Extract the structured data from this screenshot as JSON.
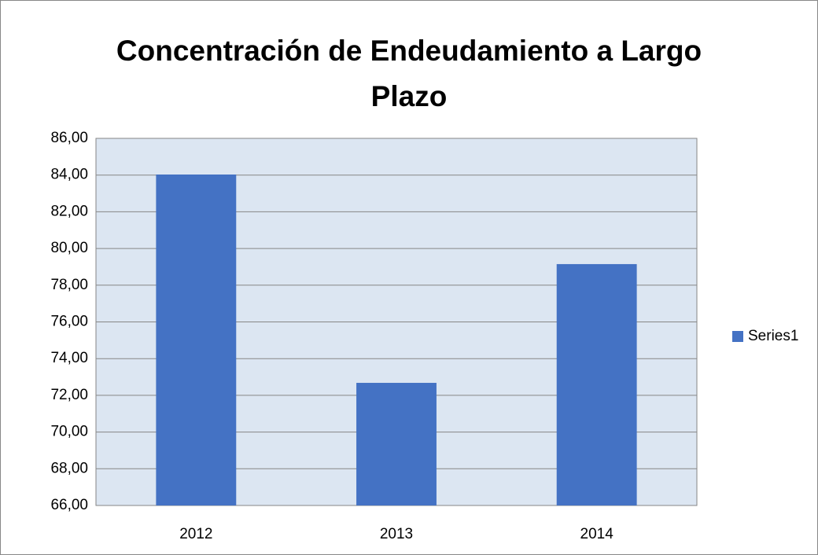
{
  "chart_data": {
    "type": "bar",
    "title": "Concentración de Endeudamiento a Largo Plazo",
    "categories": [
      "2012",
      "2013",
      "2014"
    ],
    "series": [
      {
        "name": "Series1",
        "color": "#4472c4",
        "values": [
          84.03,
          72.68,
          79.15
        ]
      }
    ],
    "ylim": [
      66,
      86
    ],
    "yticks": [
      {
        "value": 66,
        "label": "66,00"
      },
      {
        "value": 68,
        "label": "68,00"
      },
      {
        "value": 70,
        "label": "70,00"
      },
      {
        "value": 72,
        "label": "72,00"
      },
      {
        "value": 74,
        "label": "74,00"
      },
      {
        "value": 76,
        "label": "76,00"
      },
      {
        "value": 78,
        "label": "78,00"
      },
      {
        "value": 80,
        "label": "80,00"
      },
      {
        "value": 82,
        "label": "82,00"
      },
      {
        "value": 84,
        "label": "84,00"
      },
      {
        "value": 86,
        "label": "86,00"
      }
    ],
    "grid": true,
    "legend": "right"
  }
}
